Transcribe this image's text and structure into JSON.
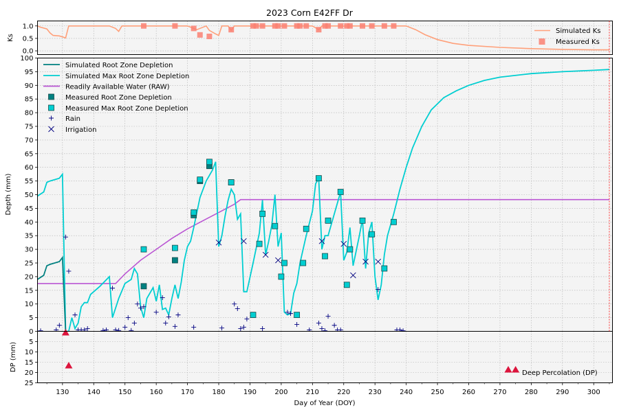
{
  "chart_data": {
    "type": "line",
    "title": "2023 Corn E42FF Dr",
    "xlabel": "Day of Year (DOY)",
    "xlim": [
      122,
      306
    ],
    "xticks": [
      130,
      140,
      150,
      160,
      170,
      180,
      190,
      200,
      210,
      220,
      230,
      240,
      250,
      260,
      270,
      280,
      290,
      300
    ],
    "vline_x": 305,
    "colors": {
      "ks_sim": "#ffa07a",
      "ks_meas": "#fa8072",
      "rzd": "#008080",
      "max_rzd": "#00ced1",
      "raw": "#ba55d3",
      "rain": "#000080",
      "irr": "#000080",
      "dp": "#dc143c",
      "vline": "#ff0000",
      "axes_bg": "#f4f4f4",
      "grid": "#b0b0b0"
    },
    "panels": {
      "ks": {
        "ylabel": "Ks",
        "ylim": [
          -0.15,
          1.2
        ],
        "yticks": [
          0.0,
          0.5,
          1.0
        ],
        "tick_labels": [
          "0.0",
          "0.5",
          "1.0"
        ],
        "legend": {
          "placement": "upper right",
          "simulated": "Simulated Ks",
          "measured": "Measured Ks"
        },
        "simulated": [
          [
            122,
            1.0
          ],
          [
            123,
            0.95
          ],
          [
            125,
            0.88
          ],
          [
            126,
            0.72
          ],
          [
            127,
            0.62
          ],
          [
            129,
            0.6
          ],
          [
            130,
            0.56
          ],
          [
            131,
            0.52
          ],
          [
            132,
            1.0
          ],
          [
            145,
            1.0
          ],
          [
            147,
            0.9
          ],
          [
            148,
            0.78
          ],
          [
            149,
            1.0
          ],
          [
            170,
            1.0
          ],
          [
            172,
            0.9
          ],
          [
            173,
            0.85
          ],
          [
            176,
            1.0
          ],
          [
            177,
            0.82
          ],
          [
            179,
            0.68
          ],
          [
            180,
            0.62
          ],
          [
            181,
            1.0
          ],
          [
            183,
            1.0
          ],
          [
            184,
            0.82
          ],
          [
            185,
            1.0
          ],
          [
            210,
            1.0
          ],
          [
            212,
            0.85
          ],
          [
            213,
            1.0
          ],
          [
            240,
            1.0
          ],
          [
            243,
            0.85
          ],
          [
            246,
            0.65
          ],
          [
            250,
            0.45
          ],
          [
            255,
            0.3
          ],
          [
            260,
            0.22
          ],
          [
            270,
            0.14
          ],
          [
            280,
            0.09
          ],
          [
            290,
            0.06
          ],
          [
            300,
            0.04
          ],
          [
            305,
            0.04
          ]
        ],
        "measured": [
          [
            156,
            1.0
          ],
          [
            166,
            1.0
          ],
          [
            172,
            0.9
          ],
          [
            174,
            0.64
          ],
          [
            177,
            0.58
          ],
          [
            184,
            0.85
          ],
          [
            191,
            1.0
          ],
          [
            192,
            1.0
          ],
          [
            194,
            1.0
          ],
          [
            198,
            1.0
          ],
          [
            199,
            1.0
          ],
          [
            201,
            1.0
          ],
          [
            205,
            1.0
          ],
          [
            206,
            1.0
          ],
          [
            208,
            1.0
          ],
          [
            212,
            0.85
          ],
          [
            214,
            1.0
          ],
          [
            215,
            1.0
          ],
          [
            219,
            1.0
          ],
          [
            221,
            1.0
          ],
          [
            222,
            1.0
          ],
          [
            226,
            1.0
          ],
          [
            229,
            1.0
          ],
          [
            233,
            1.0
          ],
          [
            236,
            1.0
          ]
        ]
      },
      "depth": {
        "ylabel": "Depth (mm)",
        "ylim": [
          0,
          100
        ],
        "yticks": [
          0,
          5,
          10,
          15,
          20,
          25,
          30,
          35,
          40,
          45,
          50,
          55,
          60,
          65,
          70,
          75,
          80,
          85,
          90,
          95,
          100
        ],
        "tick_labels": [
          "0",
          "5",
          "10",
          "15",
          "20",
          "25",
          "30",
          "35",
          "40",
          "45",
          "50",
          "55",
          "60",
          "65",
          "70",
          "75",
          "80",
          "85",
          "90",
          "95",
          "100"
        ],
        "legend": {
          "placement": "upper left",
          "rzd": "Simulated Root Zone Depletion",
          "max_rzd": "Simulated Max Root Zone Depletion",
          "raw": "Readily Available Water (RAW)",
          "meas_rzd": "Measured Root Zone Depletion",
          "meas_max_rzd": "Measured Max Root Zone Depletion",
          "rain": "Rain",
          "irr": "Irrigation"
        },
        "raw": [
          [
            122,
            17.5
          ],
          [
            147,
            17.5
          ],
          [
            150,
            21
          ],
          [
            155,
            26
          ],
          [
            160,
            30
          ],
          [
            165,
            34
          ],
          [
            170,
            37.5
          ],
          [
            175,
            40.5
          ],
          [
            180,
            43.5
          ],
          [
            185,
            46.5
          ],
          [
            187,
            48.2
          ],
          [
            305,
            48.2
          ]
        ],
        "rzd": [
          [
            122,
            19
          ],
          [
            124,
            20.5
          ],
          [
            125,
            24
          ],
          [
            126,
            24.5
          ],
          [
            129,
            25.5
          ],
          [
            130,
            27
          ],
          [
            131,
            0
          ]
        ],
        "max_rzd": [
          [
            122,
            49.5
          ],
          [
            124,
            51
          ],
          [
            125,
            54.5
          ],
          [
            126,
            55
          ],
          [
            129,
            56
          ],
          [
            130,
            57.5
          ],
          [
            131,
            0
          ],
          [
            132,
            0
          ],
          [
            133,
            5
          ],
          [
            134,
            1
          ],
          [
            135,
            3
          ],
          [
            136,
            9
          ],
          [
            137,
            10.5
          ],
          [
            138,
            10.5
          ],
          [
            139,
            13.5
          ],
          [
            142,
            16.5
          ],
          [
            145,
            20
          ],
          [
            146,
            5
          ],
          [
            148,
            12
          ],
          [
            150,
            17.5
          ],
          [
            152,
            19
          ],
          [
            153,
            23
          ],
          [
            154,
            21
          ],
          [
            155,
            9
          ],
          [
            156,
            5
          ],
          [
            157,
            12
          ],
          [
            159,
            16
          ],
          [
            160,
            11
          ],
          [
            161,
            17
          ],
          [
            162,
            8
          ],
          [
            163,
            8.5
          ],
          [
            164,
            6
          ],
          [
            165,
            12
          ],
          [
            166,
            17
          ],
          [
            167,
            12
          ],
          [
            168,
            18
          ],
          [
            169,
            26
          ],
          [
            170,
            31
          ],
          [
            171,
            33
          ],
          [
            172,
            38
          ],
          [
            174,
            49
          ],
          [
            176,
            55
          ],
          [
            178,
            59
          ],
          [
            179,
            62
          ],
          [
            180,
            31
          ],
          [
            181,
            35
          ],
          [
            182,
            42
          ],
          [
            183,
            48
          ],
          [
            184,
            52
          ],
          [
            185,
            50
          ],
          [
            186,
            41
          ],
          [
            187,
            43
          ],
          [
            188,
            14.5
          ],
          [
            189,
            14.5
          ],
          [
            191,
            25
          ],
          [
            193,
            36
          ],
          [
            194,
            48
          ],
          [
            195,
            28
          ],
          [
            196,
            33
          ],
          [
            197,
            39
          ],
          [
            198,
            50
          ],
          [
            199,
            31
          ],
          [
            200,
            36
          ],
          [
            201,
            7
          ],
          [
            202,
            6
          ],
          [
            203,
            6.5
          ],
          [
            204,
            14
          ],
          [
            205,
            17.5
          ],
          [
            206,
            25
          ],
          [
            208,
            35
          ],
          [
            210,
            44
          ],
          [
            211,
            54
          ],
          [
            212,
            56
          ],
          [
            213,
            30
          ],
          [
            214,
            35
          ],
          [
            215,
            35
          ],
          [
            219,
            51
          ],
          [
            220,
            26
          ],
          [
            221,
            29
          ],
          [
            222,
            38
          ],
          [
            223,
            24
          ],
          [
            225,
            35
          ],
          [
            226,
            41
          ],
          [
            227,
            23
          ],
          [
            228,
            36
          ],
          [
            229,
            40
          ],
          [
            230,
            20
          ],
          [
            231,
            11.5
          ],
          [
            232,
            17
          ],
          [
            233,
            28
          ],
          [
            234,
            35
          ],
          [
            236,
            43
          ],
          [
            238,
            52
          ],
          [
            240,
            60
          ],
          [
            242,
            67
          ],
          [
            245,
            75
          ],
          [
            248,
            81
          ],
          [
            252,
            85.5
          ],
          [
            256,
            88
          ],
          [
            260,
            90
          ],
          [
            265,
            91.8
          ],
          [
            270,
            93
          ],
          [
            280,
            94.3
          ],
          [
            290,
            95
          ],
          [
            300,
            95.5
          ],
          [
            305,
            95.8
          ]
        ],
        "meas_rzd": [
          [
            156,
            16.5
          ],
          [
            166,
            26
          ],
          [
            172,
            42.5
          ],
          [
            174,
            55
          ],
          [
            177,
            60.5
          ],
          [
            184,
            54.5
          ]
        ],
        "meas_max_rzd": [
          [
            156,
            30
          ],
          [
            166,
            30.5
          ],
          [
            172,
            43.5
          ],
          [
            174,
            55.5
          ],
          [
            177,
            62
          ],
          [
            184,
            54.5
          ],
          [
            191,
            6
          ],
          [
            193,
            32
          ],
          [
            194,
            43
          ],
          [
            198,
            38.5
          ],
          [
            200,
            20
          ],
          [
            201,
            25
          ],
          [
            205,
            6
          ],
          [
            207,
            25
          ],
          [
            208,
            37.5
          ],
          [
            212,
            56
          ],
          [
            214,
            27.5
          ],
          [
            215,
            40.5
          ],
          [
            219,
            51
          ],
          [
            221,
            17
          ],
          [
            222,
            30
          ],
          [
            226,
            40.5
          ],
          [
            229,
            35.5
          ],
          [
            233,
            23
          ],
          [
            236,
            40
          ]
        ],
        "rain": [
          [
            123,
            0.2
          ],
          [
            128,
            0.5
          ],
          [
            129,
            2.2
          ],
          [
            131,
            34.5
          ],
          [
            132,
            22
          ],
          [
            134,
            6
          ],
          [
            135,
            0.5
          ],
          [
            136,
            0.5
          ],
          [
            137,
            0.5
          ],
          [
            138,
            1
          ],
          [
            143,
            0.3
          ],
          [
            144,
            0.5
          ],
          [
            146,
            15.8
          ],
          [
            147,
            0.5
          ],
          [
            148,
            0.3
          ],
          [
            150,
            1.5
          ],
          [
            151,
            5
          ],
          [
            152,
            0.3
          ],
          [
            153,
            3
          ],
          [
            154,
            10
          ],
          [
            155,
            8.5
          ],
          [
            156,
            9
          ],
          [
            160,
            7
          ],
          [
            162,
            12.3
          ],
          [
            163,
            3
          ],
          [
            164,
            5.3
          ],
          [
            166,
            1.8
          ],
          [
            167,
            6
          ],
          [
            172,
            1.5
          ],
          [
            181,
            1.2
          ],
          [
            185,
            10
          ],
          [
            186,
            8.3
          ],
          [
            187,
            1
          ],
          [
            188,
            1.5
          ],
          [
            189,
            4.5
          ],
          [
            194,
            1
          ],
          [
            202,
            7
          ],
          [
            203,
            6.5
          ],
          [
            205,
            2.5
          ],
          [
            209,
            0.5
          ],
          [
            212,
            3
          ],
          [
            213,
            1
          ],
          [
            214,
            0.2
          ],
          [
            215,
            5.5
          ],
          [
            217,
            2.2
          ],
          [
            218,
            0.5
          ],
          [
            219,
            0.5
          ],
          [
            231,
            15.3
          ],
          [
            237,
            0.5
          ],
          [
            238,
            0.5
          ],
          [
            239,
            0.2
          ]
        ],
        "irrigation": [
          [
            180,
            32.5
          ],
          [
            188,
            33
          ],
          [
            195,
            28
          ],
          [
            199,
            26
          ],
          [
            213,
            33
          ],
          [
            220,
            32
          ],
          [
            223,
            20.5
          ],
          [
            227,
            25.5
          ],
          [
            231,
            25.5
          ]
        ]
      },
      "dp": {
        "ylabel": "DP (mm)",
        "ylim": [
          25,
          0
        ],
        "yticks": [
          5,
          10,
          15,
          20,
          25
        ],
        "tick_labels": [
          "5",
          "10",
          "15",
          "20",
          "25"
        ],
        "legend": {
          "placement": "lower right",
          "label": "Deep Percolation (DP)"
        },
        "values": [
          [
            131,
            0.5
          ],
          [
            132,
            16.5
          ],
          [
            275,
            18.5
          ]
        ]
      }
    }
  }
}
